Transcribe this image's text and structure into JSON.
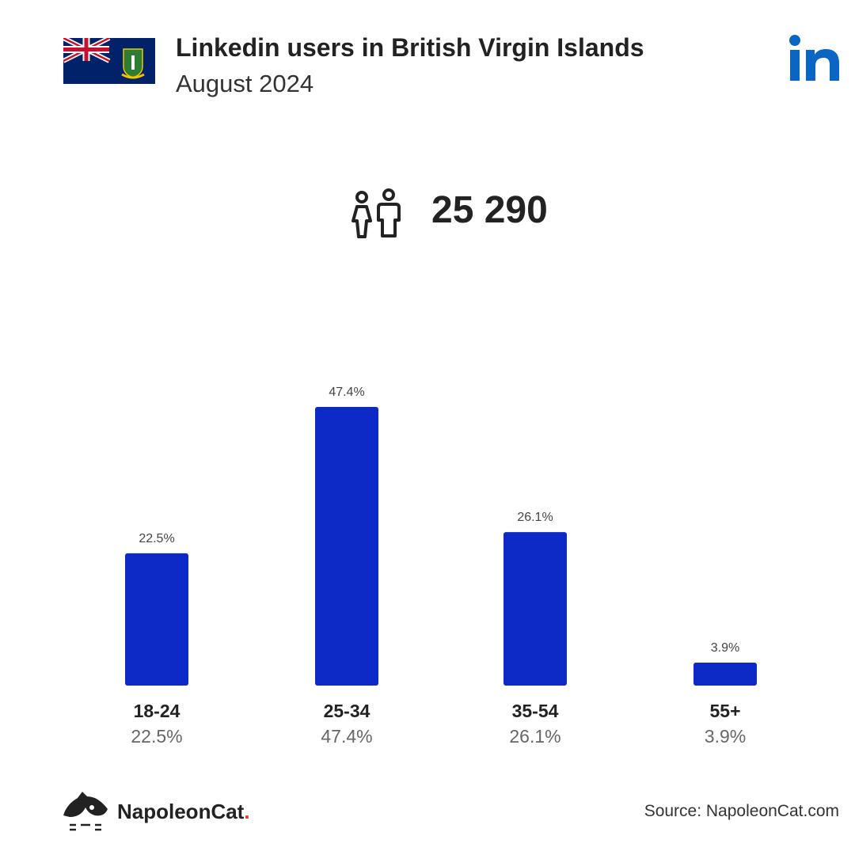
{
  "header": {
    "title": "Linkedin users in British Virgin Islands",
    "subtitle": "August 2024"
  },
  "summary": {
    "total_users": "25 290",
    "icon": "users-icon"
  },
  "colors": {
    "bar": "#0e2ac6",
    "linkedin": "#0a66c2",
    "text_dark": "#222222",
    "text_muted": "#666666",
    "brand_dot": "#e53b2c"
  },
  "chart_data": {
    "type": "bar",
    "categories": [
      "18-24",
      "25-34",
      "35-54",
      "55+"
    ],
    "values": [
      22.5,
      47.4,
      26.1,
      3.9
    ],
    "value_labels": [
      "22.5%",
      "47.4%",
      "26.1%",
      "3.9%"
    ],
    "ylim": [
      0,
      47.4
    ],
    "grid": false
  },
  "footer": {
    "brand": "NapoleonCat",
    "brand_dot": ".",
    "source": "Source: NapoleonCat.com"
  }
}
